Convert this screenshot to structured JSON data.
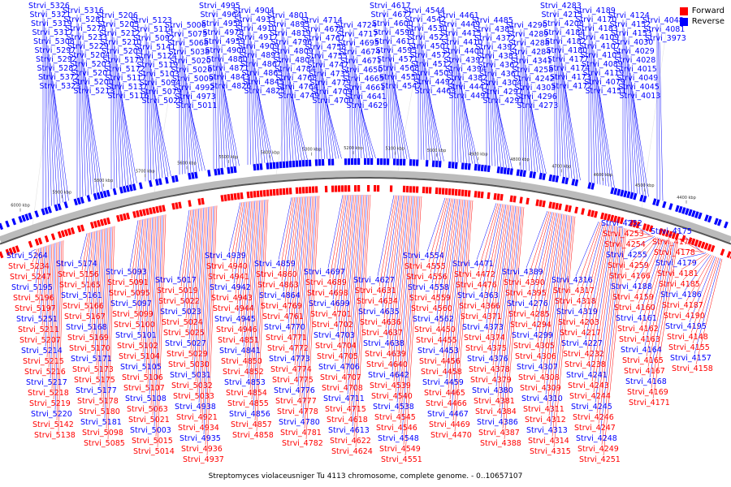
{
  "legend": {
    "forward": {
      "label": "Forward",
      "color": "#ff0000"
    },
    "reverse": {
      "label": "Reverse",
      "color": "#0000ff"
    }
  },
  "caption": "Streptomyces violaceusniger Tu 4113 chromosome, complete genome. - 0..10657107",
  "scale_ticks": [
    "6000 kbp",
    "5900 kbp",
    "5800 kbp",
    "5700 kbp",
    "5600 kbp",
    "5500 kbp",
    "5400 kbp",
    "5300 kbp",
    "5200 kbp",
    "5100 kbp",
    "5000 kbp",
    "4900 kbp",
    "4800 kbp",
    "4700 kbp",
    "4600 kbp",
    "4500 kbp",
    "4400 kbp"
  ],
  "reverse_genes": [
    "Strvi_5326",
    "Strvi_5321",
    "Strvi_5319",
    "Strvi_5317",
    "Strvi_5308",
    "Strvi_5297",
    "Strvi_5292",
    "Strvi_5282",
    "Strvi_5372",
    "Strvi_5323",
    "Strvi_5316",
    "Strvi_5281",
    "Strvi_5278",
    "Strvi_5233",
    "Strvi_5229",
    "Strvi_5204",
    "Strvi_5203",
    "Strvi_5201",
    "Strvi_5200",
    "Strvi_5213",
    "Strvi_5206",
    "Strvi_5205",
    "Strvi_5212",
    "Strvi_5210",
    "Strvi_5209",
    "Strvi_5179",
    "Strvi_5172",
    "Strvi_5117",
    "Strvi_5137",
    "Strvi_5116",
    "Strvi_5123",
    "Strvi_5114",
    "Strvi_5092",
    "Strvi_5141",
    "Strvi_5124",
    "Strvi_5119",
    "Strvi_5103",
    "Strvi_5094",
    "Strvi_5079",
    "Strvi_5028",
    "Strvi_5006",
    "Strvi_5075",
    "Strvi_5068",
    "Strvi_5038",
    "Strvi_5020",
    "Strvi_5026",
    "Strvi_5009",
    "Strvi_4992",
    "Strvi_4973",
    "Strvi_5011",
    "Strvi_4995",
    "Strvi_4964",
    "Strvi_4958",
    "Strvi_4978",
    "Strvi_4959",
    "Strvi_4906",
    "Strvi_4880",
    "Strvi_4871",
    "Strvi_4843",
    "Strvi_4826",
    "Strvi_4904",
    "Strvi_4933",
    "Strvi_4910",
    "Strvi_4917",
    "Strvi_4909",
    "Strvi_4893",
    "Strvi_4867",
    "Strvi_4865",
    "Strvi_4845",
    "Strvi_4825",
    "Strvi_4801",
    "Strvi_4895",
    "Strvi_4819",
    "Strvi_4796",
    "Strvi_4809",
    "Strvi_4804",
    "Strvi_4784",
    "Strvi_4768",
    "Strvi_4764",
    "Strvi_4749",
    "Strvi_4714",
    "Strvi_4678",
    "Strvi_4767",
    "Strvi_4758",
    "Strvi_4755",
    "Strvi_4747",
    "Strvi_4735",
    "Strvi_4779",
    "Strvi_4709",
    "Strvi_4700",
    "Strvi_4724",
    "Strvi_4717",
    "Strvi_4695",
    "Strvi_4674",
    "Strvi_4671",
    "Strvi_4650",
    "Strvi_4665",
    "Strvi_4661",
    "Strvi_4641",
    "Strvi_4629",
    "Strvi_4617",
    "Strvi_4677",
    "Strvi_4600",
    "Strvi_4596",
    "Strvi_4611",
    "Strvi_4595",
    "Strvi_4571",
    "Strvi_4568",
    "Strvi_4550",
    "Strvi_4547",
    "Strvi_4544",
    "Strvi_4542",
    "Strvi_4530",
    "Strvi_4523",
    "Strvi_4501",
    "Strvi_4572",
    "Strvi_4512",
    "Strvi_4509",
    "Strvi_4492",
    "Strvi_4463",
    "Strvi_4461",
    "Strvi_4449",
    "Strvi_4415",
    "Strvi_4410",
    "Strvi_4400",
    "Strvi_4397",
    "Strvi_4394",
    "Strvi_4382",
    "Strvi_4447",
    "Strvi_4491",
    "Strvi_4485",
    "Strvi_4385",
    "Strvi_4372",
    "Strvi_4392",
    "Strvi_4383",
    "Strvi_4362",
    "Strvi_4361",
    "Strvi_4304",
    "Strvi_4297",
    "Strvi_4291",
    "Strvi_4290",
    "Strvi_4289",
    "Strvi_4288",
    "Strvi_4284",
    "Strvi_4341",
    "Strvi_4258",
    "Strvi_4242",
    "Strvi_4303",
    "Strvi_4296",
    "Strvi_4273",
    "Strvi_4283",
    "Strvi_4215",
    "Strvi_4208",
    "Strvi_4184",
    "Strvi_4182",
    "Strvi_4180",
    "Strvi_4177",
    "Strvi_4174",
    "Strvi_4173",
    "Strvi_4172",
    "Strvi_4189",
    "Strvi_4170",
    "Strvi_4183",
    "Strvi_4109",
    "Strvi_4107",
    "Strvi_4105",
    "Strvi_4089",
    "Strvi_4119",
    "Strvi_4079",
    "Strvi_4151",
    "Strvi_4124",
    "Strvi_4152",
    "Strvi_4153",
    "Strvi_4030",
    "Strvi_4029",
    "Strvi_4028",
    "Strvi_4015",
    "Strvi_4049",
    "Strvi_4045",
    "Strvi_4013",
    "Strvi_4048",
    "Strvi_4081",
    "Strvi_3973"
  ],
  "forward_genes": [
    "Strvi_5264",
    "Strvi_5234",
    "Strvi_5247",
    "Strvi_5195",
    "Strvi_5196",
    "Strvi_5197",
    "Strvi_5251",
    "Strvi_5211",
    "Strvi_5207",
    "Strvi_5214",
    "Strvi_5215",
    "Strvi_5216",
    "Strvi_5217",
    "Strvi_5218",
    "Strvi_5219",
    "Strvi_5220",
    "Strvi_5142",
    "Strvi_5138",
    "Strvi_5174",
    "Strvi_5156",
    "Strvi_5165",
    "Strvi_5161",
    "Strvi_5166",
    "Strvi_5167",
    "Strvi_5168",
    "Strvi_5169",
    "Strvi_5170",
    "Strvi_5171",
    "Strvi_5173",
    "Strvi_5175",
    "Strvi_5177",
    "Strvi_5178",
    "Strvi_5180",
    "Strvi_5181",
    "Strvi_5098",
    "Strvi_5085",
    "Strvi_5093",
    "Strvi_5091",
    "Strvi_5095",
    "Strvi_5097",
    "Strvi_5099",
    "Strvi_5100",
    "Strvi_5101",
    "Strvi_5102",
    "Strvi_5104",
    "Strvi_5105",
    "Strvi_5106",
    "Strvi_5107",
    "Strvi_5108",
    "Strvi_5063",
    "Strvi_5021",
    "Strvi_5003",
    "Strvi_5015",
    "Strvi_5014",
    "Strvi_5017",
    "Strvi_5019",
    "Strvi_5022",
    "Strvi_5023",
    "Strvi_5024",
    "Strvi_5025",
    "Strvi_5027",
    "Strvi_5029",
    "Strvi_5030",
    "Strvi_5031",
    "Strvi_5032",
    "Strvi_5033",
    "Strvi_4938",
    "Strvi_4921",
    "Strvi_4934",
    "Strvi_4935",
    "Strvi_4936",
    "Strvi_4937",
    "Strvi_4939",
    "Strvi_4940",
    "Strvi_4941",
    "Strvi_4942",
    "Strvi_4943",
    "Strvi_4944",
    "Strvi_4945",
    "Strvi_4946",
    "Strvi_4851",
    "Strvi_4841",
    "Strvi_4850",
    "Strvi_4852",
    "Strvi_4853",
    "Strvi_4854",
    "Strvi_4855",
    "Strvi_4856",
    "Strvi_4857",
    "Strvi_4858",
    "Strvi_4859",
    "Strvi_4860",
    "Strvi_4863",
    "Strvi_4864",
    "Strvi_4769",
    "Strvi_4761",
    "Strvi_4770",
    "Strvi_4771",
    "Strvi_4772",
    "Strvi_4773",
    "Strvi_4774",
    "Strvi_4775",
    "Strvi_4776",
    "Strvi_4777",
    "Strvi_4778",
    "Strvi_4780",
    "Strvi_4781",
    "Strvi_4782",
    "Strvi_4697",
    "Strvi_4689",
    "Strvi_4698",
    "Strvi_4699",
    "Strvi_4701",
    "Strvi_4702",
    "Strvi_4703",
    "Strvi_4704",
    "Strvi_4705",
    "Strvi_4706",
    "Strvi_4707",
    "Strvi_4708",
    "Strvi_4711",
    "Strvi_4715",
    "Strvi_4618",
    "Strvi_4613",
    "Strvi_4622",
    "Strvi_4624",
    "Strvi_4627",
    "Strvi_4631",
    "Strvi_4634",
    "Strvi_4635",
    "Strvi_4636",
    "Strvi_4637",
    "Strvi_4638",
    "Strvi_4639",
    "Strvi_4640",
    "Strvi_4642",
    "Strvi_4539",
    "Strvi_4540",
    "Strvi_4538",
    "Strvi_4545",
    "Strvi_4546",
    "Strvi_4548",
    "Strvi_4549",
    "Strvi_4551",
    "Strvi_4554",
    "Strvi_4555",
    "Strvi_4556",
    "Strvi_4558",
    "Strvi_4559",
    "Strvi_4560",
    "Strvi_4562",
    "Strvi_4450",
    "Strvi_4455",
    "Strvi_4453",
    "Strvi_4456",
    "Strvi_4458",
    "Strvi_4459",
    "Strvi_4465",
    "Strvi_4466",
    "Strvi_4467",
    "Strvi_4469",
    "Strvi_4470",
    "Strvi_4471",
    "Strvi_4472",
    "Strvi_4476",
    "Strvi_4363",
    "Strvi_4366",
    "Strvi_4371",
    "Strvi_4373",
    "Strvi_4374",
    "Strvi_4375",
    "Strvi_4376",
    "Strvi_4378",
    "Strvi_4379",
    "Strvi_4380",
    "Strvi_4381",
    "Strvi_4384",
    "Strvi_4386",
    "Strvi_4387",
    "Strvi_4388",
    "Strvi_4389",
    "Strvi_4390",
    "Strvi_4395",
    "Strvi_4276",
    "Strvi_4285",
    "Strvi_4294",
    "Strvi_4299",
    "Strvi_4305",
    "Strvi_4306",
    "Strvi_4307",
    "Strvi_4308",
    "Strvi_4309",
    "Strvi_4310",
    "Strvi_4311",
    "Strvi_4312",
    "Strvi_4313",
    "Strvi_4314",
    "Strvi_4315",
    "Strvi_4316",
    "Strvi_4317",
    "Strvi_4318",
    "Strvi_4319",
    "Strvi_4203",
    "Strvi_4217",
    "Strvi_4227",
    "Strvi_4232",
    "Strvi_4238",
    "Strvi_4241",
    "Strvi_4243",
    "Strvi_4244",
    "Strvi_4245",
    "Strvi_4246",
    "Strvi_4247",
    "Strvi_4248",
    "Strvi_4249",
    "Strvi_4251",
    "Strvi_4252",
    "Strvi_4253",
    "Strvi_4254",
    "Strvi_4255",
    "Strvi_4259",
    "Strvi_4166",
    "Strvi_4188",
    "Strvi_4159",
    "Strvi_4160",
    "Strvi_4161",
    "Strvi_4162",
    "Strvi_4163",
    "Strvi_4164",
    "Strvi_4165",
    "Strvi_4167",
    "Strvi_4168",
    "Strvi_4169",
    "Strvi_4171",
    "Strvi_4175",
    "Strvi_4176",
    "Strvi_4178",
    "Strvi_4179",
    "Strvi_4181",
    "Strvi_4185",
    "Strvi_4186",
    "Strvi_4187",
    "Strvi_4190",
    "Strvi_4195",
    "Strvi_4148",
    "Strvi_4155",
    "Strvi_4157",
    "Strvi_4158"
  ]
}
